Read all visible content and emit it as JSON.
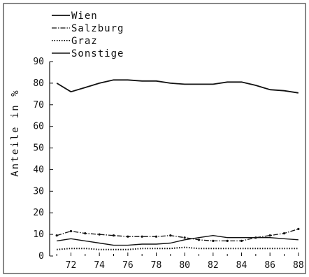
{
  "chart_data": {
    "type": "line",
    "title": "",
    "xlabel": "",
    "ylabel": "Anteile in %",
    "xlim": [
      70.5,
      88.5
    ],
    "ylim": [
      0,
      90
    ],
    "x_ticks": [
      72,
      74,
      76,
      78,
      80,
      82,
      84,
      86,
      88
    ],
    "y_ticks": [
      0,
      10,
      20,
      30,
      40,
      50,
      60,
      70,
      80,
      90
    ],
    "grid": false,
    "legend_position": "top-left",
    "x": [
      71,
      72,
      73,
      74,
      75,
      76,
      77,
      78,
      79,
      80,
      81,
      82,
      83,
      84,
      85,
      86,
      87,
      88
    ],
    "series": [
      {
        "name": "Wien",
        "style": "solid",
        "values": [
          80,
          76,
          78,
          80,
          81.5,
          81.5,
          81,
          81,
          80,
          79.5,
          79.5,
          79.5,
          80.5,
          80.5,
          79,
          77,
          76.5,
          75.5
        ]
      },
      {
        "name": "Salzburg",
        "style": "dash-dot",
        "values": [
          9.5,
          11.5,
          10.5,
          10,
          9.5,
          9,
          9,
          9,
          9.5,
          8.5,
          7.5,
          7,
          7,
          7,
          8.5,
          9.5,
          10.5,
          12.5
        ]
      },
      {
        "name": "Graz",
        "style": "dotted",
        "values": [
          3,
          3.5,
          3.5,
          3,
          3,
          3,
          3.5,
          3.5,
          3.5,
          4,
          3.5,
          3.5,
          3.5,
          3.5,
          3.5,
          3.5,
          3.5,
          3.5
        ]
      },
      {
        "name": "Sonstige",
        "style": "solid-thin",
        "values": [
          7,
          8,
          7,
          6,
          5,
          5,
          5.5,
          5.5,
          6,
          7.5,
          8.5,
          9.5,
          8.5,
          8.5,
          8.5,
          8.5,
          8,
          7.5
        ]
      }
    ]
  }
}
